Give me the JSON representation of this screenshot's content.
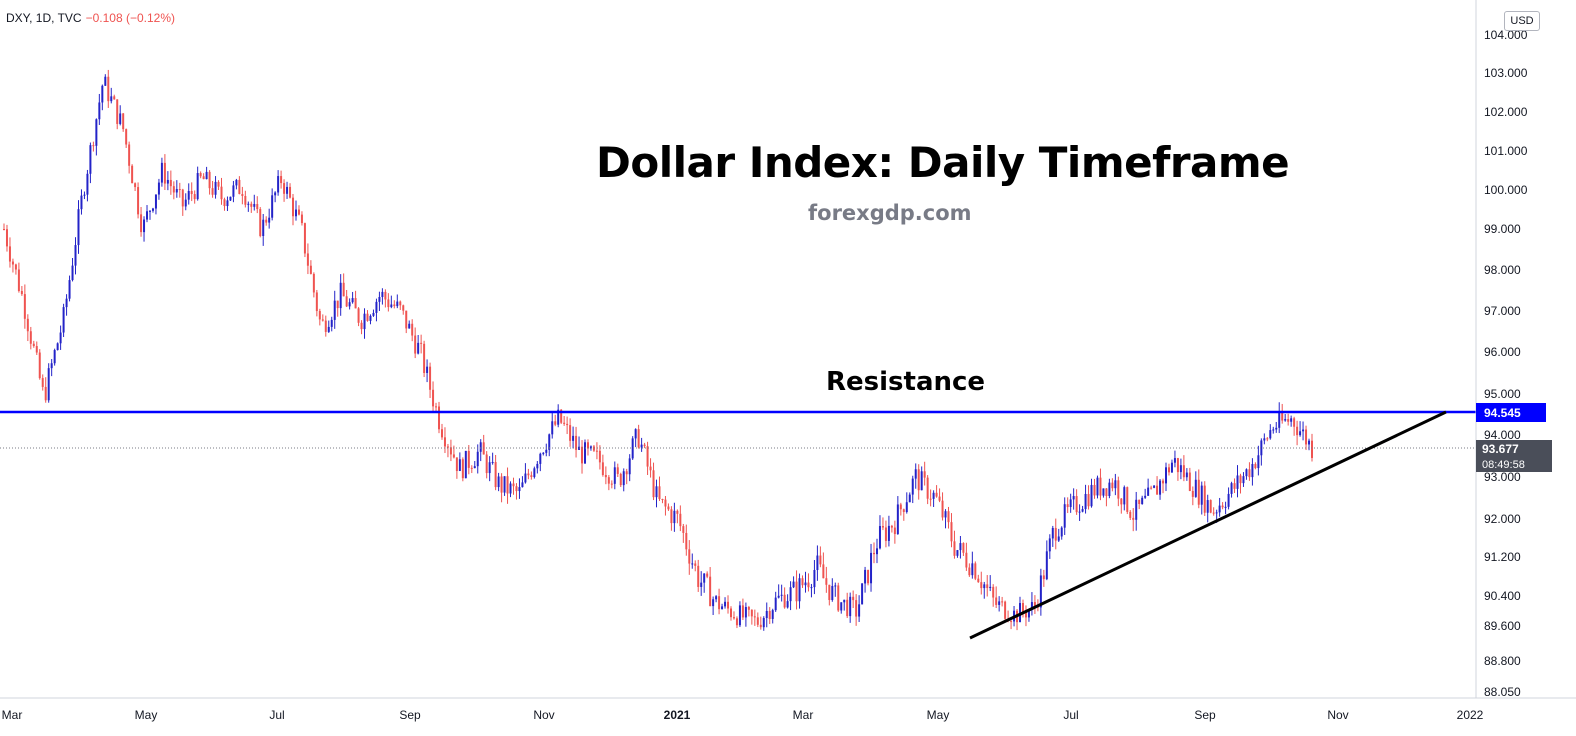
{
  "header": {
    "symbol": "DXY, 1D, TVC",
    "change": "−0.108 (−0.12%)",
    "currency_button": "USD"
  },
  "annotations": {
    "title": "Dollar Index: Daily Timeframe",
    "source": "forexgdp.com",
    "resistance_label": "Resistance"
  },
  "price_scale": {
    "ticks": [
      "104.000",
      "103.000",
      "102.000",
      "101.000",
      "100.000",
      "99.000",
      "98.000",
      "97.000",
      "96.000",
      "95.000",
      "94.000",
      "93.000",
      "92.000",
      "91.200",
      "90.400",
      "89.600",
      "88.800",
      "88.050"
    ],
    "resistance_price": "94.545",
    "last_price": "93.677",
    "countdown": "08:49:58"
  },
  "time_scale": {
    "ticks": [
      "Mar",
      "May",
      "Jul",
      "Sep",
      "Nov",
      "2021",
      "Mar",
      "May",
      "Jul",
      "Sep",
      "Nov",
      "2022"
    ]
  },
  "colors": {
    "up_candle": "#2323c8",
    "down_candle": "#ef5350",
    "resistance_line": "#0000ff",
    "trendline": "#000000",
    "last_price_bg": "#4a4e59",
    "resistance_bg": "#0000ff"
  },
  "chart_data": {
    "type": "candlestick",
    "symbol": "DXY",
    "interval": "1D",
    "resistance_level": 94.545,
    "last_close": 93.677,
    "trendline": {
      "from": {
        "date": "May 2021",
        "value": 89.4
      },
      "to": {
        "date": "Dec 2021",
        "value": 94.545
      }
    },
    "close_path": [
      {
        "date": "Mar 2020",
        "value": 99.0
      },
      {
        "date": "Mar 2020",
        "value": 97.2
      },
      {
        "date": "Mar 2020",
        "value": 94.9
      },
      {
        "date": "Mar 2020",
        "value": 96.8
      },
      {
        "date": "Mar 2020",
        "value": 100.0
      },
      {
        "date": "Mar 2020",
        "value": 102.8
      },
      {
        "date": "Mar 2020",
        "value": 101.6
      },
      {
        "date": "Apr 2020",
        "value": 99.0
      },
      {
        "date": "Apr 2020",
        "value": 100.5
      },
      {
        "date": "Apr 2020",
        "value": 99.6
      },
      {
        "date": "Apr 2020",
        "value": 100.3
      },
      {
        "date": "May 2020",
        "value": 99.8
      },
      {
        "date": "May 2020",
        "value": 100.1
      },
      {
        "date": "May 2020",
        "value": 99.0
      },
      {
        "date": "May 2020",
        "value": 100.3
      },
      {
        "date": "Jun 2020",
        "value": 99.0
      },
      {
        "date": "Jun 2020",
        "value": 96.6
      },
      {
        "date": "Jun 2020",
        "value": 97.4
      },
      {
        "date": "Jun 2020",
        "value": 96.8
      },
      {
        "date": "Jul 2020",
        "value": 97.4
      },
      {
        "date": "Jul 2020",
        "value": 97.0
      },
      {
        "date": "Jul 2020",
        "value": 96.0
      },
      {
        "date": "Aug 2020",
        "value": 94.3
      },
      {
        "date": "Aug 2020",
        "value": 93.2
      },
      {
        "date": "Aug 2020",
        "value": 93.6
      },
      {
        "date": "Aug 2020",
        "value": 92.8
      },
      {
        "date": "Sep 2020",
        "value": 92.6
      },
      {
        "date": "Sep 2020",
        "value": 93.6
      },
      {
        "date": "Sep 2020",
        "value": 94.4
      },
      {
        "date": "Oct 2020",
        "value": 93.6
      },
      {
        "date": "Oct 2020",
        "value": 93.4
      },
      {
        "date": "Oct 2020",
        "value": 92.9
      },
      {
        "date": "Nov 2020",
        "value": 94.0
      },
      {
        "date": "Nov 2020",
        "value": 92.4
      },
      {
        "date": "Nov 2020",
        "value": 92.0
      },
      {
        "date": "Dec 2020",
        "value": 90.8
      },
      {
        "date": "Dec 2020",
        "value": 90.2
      },
      {
        "date": "Dec 2020",
        "value": 89.9
      },
      {
        "date": "Jan 2021",
        "value": 89.7
      },
      {
        "date": "Jan 2021",
        "value": 90.3
      },
      {
        "date": "Jan 2021",
        "value": 90.5
      },
      {
        "date": "Feb 2021",
        "value": 91.0
      },
      {
        "date": "Feb 2021",
        "value": 90.3
      },
      {
        "date": "Feb 2021",
        "value": 90.0
      },
      {
        "date": "Mar 2021",
        "value": 91.5
      },
      {
        "date": "Mar 2021",
        "value": 92.0
      },
      {
        "date": "Mar 2021",
        "value": 93.0
      },
      {
        "date": "Apr 2021",
        "value": 92.5
      },
      {
        "date": "Apr 2021",
        "value": 91.4
      },
      {
        "date": "Apr 2021",
        "value": 91.0
      },
      {
        "date": "May 2021",
        "value": 90.2
      },
      {
        "date": "May 2021",
        "value": 89.9
      },
      {
        "date": "Jun 2021",
        "value": 90.1
      },
      {
        "date": "Jun 2021",
        "value": 91.8
      },
      {
        "date": "Jun 2021",
        "value": 92.3
      },
      {
        "date": "Jul 2021",
        "value": 92.7
      },
      {
        "date": "Jul 2021",
        "value": 92.9
      },
      {
        "date": "Jul 2021",
        "value": 92.1
      },
      {
        "date": "Aug 2021",
        "value": 92.6
      },
      {
        "date": "Aug 2021",
        "value": 93.4
      },
      {
        "date": "Aug 2021",
        "value": 92.8
      },
      {
        "date": "Sep 2021",
        "value": 92.2
      },
      {
        "date": "Sep 2021",
        "value": 92.7
      },
      {
        "date": "Sep 2021",
        "value": 93.3
      },
      {
        "date": "Oct 2021",
        "value": 94.2
      },
      {
        "date": "Oct 2021",
        "value": 94.4
      },
      {
        "date": "Oct 2021",
        "value": 93.7
      }
    ]
  }
}
